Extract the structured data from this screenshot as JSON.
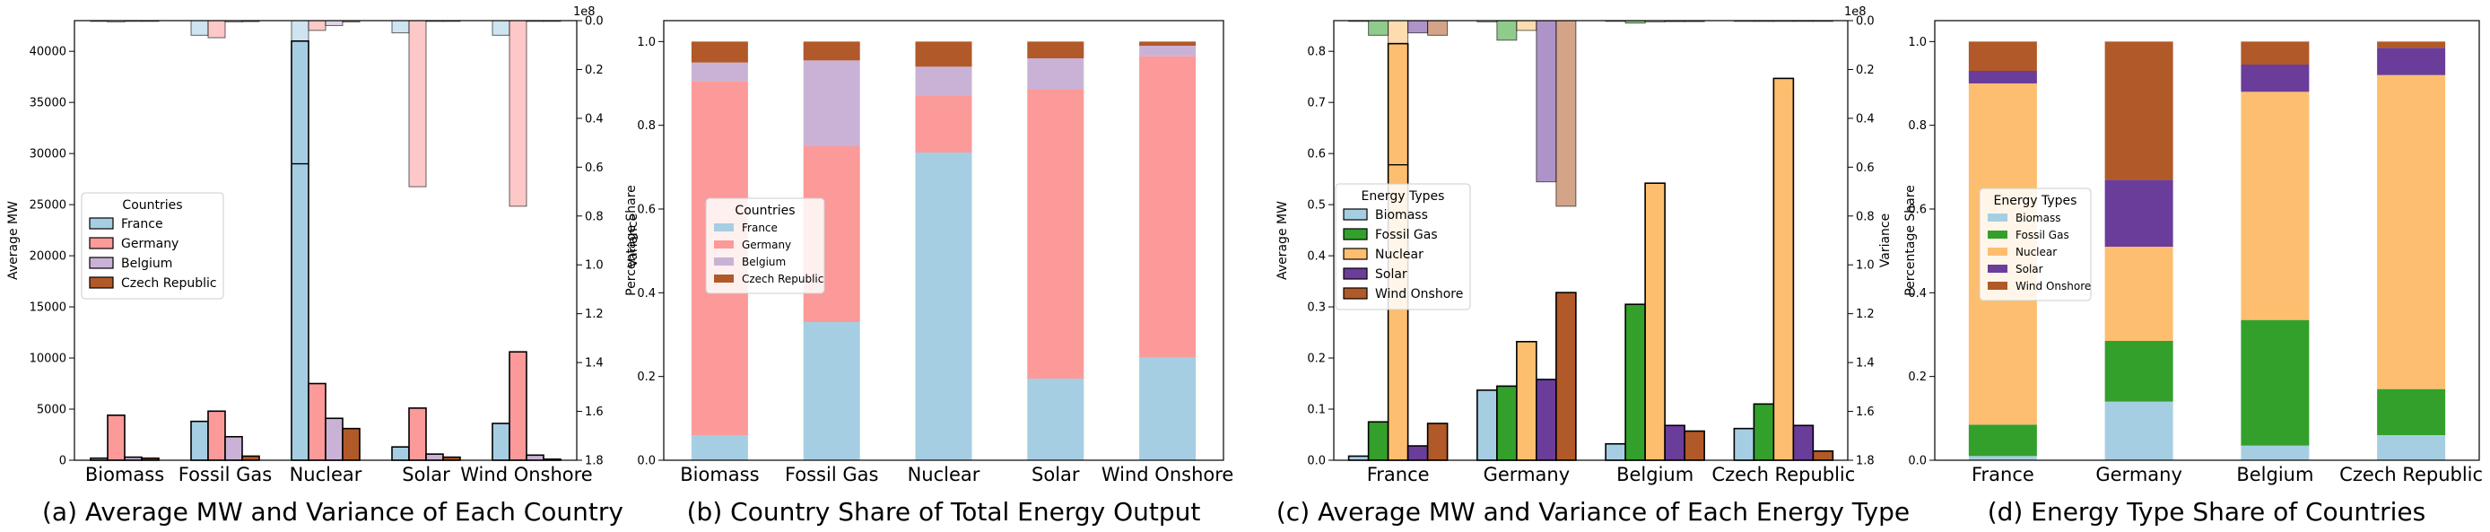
{
  "colors": {
    "France": "#a6cee3",
    "Germany": "#fb9a99",
    "Belgium": "#cab2d6",
    "Czech Republic": "#b15928",
    "Biomass": "#a6cee3",
    "Fossil Gas": "#33a02c",
    "Nuclear": "#fdbf6f",
    "Solar": "#6a3d9a",
    "Wind Onshore": "#b15928"
  },
  "chart_data": [
    {
      "id": "a",
      "type": "bar",
      "caption": "(a) Average MW and Variance of Each Country",
      "ylabel": "Average MW",
      "ylabel_right": "Variance",
      "right_offset_text": "1e8",
      "categories": [
        "Biomass",
        "Fossil Gas",
        "Nuclear",
        "Solar",
        "Wind Onshore"
      ],
      "ylim": [
        0,
        43000
      ],
      "yticks": [
        0,
        5000,
        10000,
        15000,
        20000,
        25000,
        30000,
        35000,
        40000
      ],
      "right_ylim": [
        0,
        1.8
      ],
      "right_inverted": true,
      "right_ticks": [
        "0.0",
        "0.2",
        "0.4",
        "0.6",
        "0.8",
        "1.0",
        "1.2",
        "1.4",
        "1.6",
        "1.8"
      ],
      "legend": {
        "title": "Countries",
        "placement": "center-left"
      },
      "series": [
        {
          "name": "France",
          "values": [
            200,
            3800,
            41000,
            1300,
            3600
          ],
          "variance": [
            0.003,
            0.06,
            1.8,
            0.05,
            0.06
          ]
        },
        {
          "name": "Germany",
          "values": [
            4400,
            4800,
            7500,
            5100,
            10600
          ],
          "variance": [
            0.005,
            0.07,
            0.04,
            0.68,
            0.76
          ]
        },
        {
          "name": "Belgium",
          "values": [
            300,
            2300,
            4100,
            600,
            500
          ],
          "variance": [
            0.001,
            0.005,
            0.02,
            0.003,
            0.002
          ]
        },
        {
          "name": "Czech Republic",
          "values": [
            200,
            400,
            3100,
            300,
            100
          ],
          "variance": [
            0.001,
            0.004,
            0.005,
            0.002,
            0.001
          ]
        }
      ],
      "nuclear_france_marker": 29000
    },
    {
      "id": "b",
      "type": "bar",
      "stacked": true,
      "caption": "(b) Country Share of Total Energy Output",
      "ylabel": "Percentage Share",
      "categories": [
        "Biomass",
        "Fossil Gas",
        "Nuclear",
        "Solar",
        "Wind Onshore"
      ],
      "ylim": [
        0,
        1.05
      ],
      "yticks": [
        "0.0",
        "0.2",
        "0.4",
        "0.6",
        "0.8",
        "1.0"
      ],
      "legend": {
        "title": "Countries",
        "placement": "center-left"
      },
      "series": [
        {
          "name": "France",
          "values": [
            0.06,
            0.33,
            0.735,
            0.195,
            0.245
          ]
        },
        {
          "name": "Germany",
          "values": [
            0.845,
            0.42,
            0.135,
            0.69,
            0.72
          ]
        },
        {
          "name": "Belgium",
          "values": [
            0.045,
            0.205,
            0.07,
            0.075,
            0.025
          ]
        },
        {
          "name": "Czech Republic",
          "values": [
            0.05,
            0.045,
            0.06,
            0.04,
            0.01
          ]
        }
      ]
    },
    {
      "id": "c",
      "type": "bar",
      "caption": "(c) Average MW and Variance of Each Energy Type",
      "ylabel": "Average MW",
      "ylabel_right": "Variance",
      "right_offset_text": "1e8",
      "categories": [
        "France",
        "Germany",
        "Belgium",
        "Czech Republic"
      ],
      "ylim": [
        0,
        0.86
      ],
      "yticks": [
        "0.0",
        "0.1",
        "0.2",
        "0.3",
        "0.4",
        "0.5",
        "0.6",
        "0.7",
        "0.8"
      ],
      "right_ylim": [
        0,
        1.8
      ],
      "right_inverted": true,
      "right_ticks": [
        "0.0",
        "0.2",
        "0.4",
        "0.6",
        "0.8",
        "1.0",
        "1.2",
        "1.4",
        "1.6",
        "1.8"
      ],
      "legend": {
        "title": "Energy Types",
        "placement": "center-left"
      },
      "series": [
        {
          "name": "Biomass",
          "values": [
            0.008,
            0.137,
            0.032,
            0.062
          ],
          "variance": [
            0.003,
            0.005,
            0.002,
            0.001
          ]
        },
        {
          "name": "Fossil Gas",
          "values": [
            0.075,
            0.145,
            0.305,
            0.11
          ],
          "variance": [
            0.06,
            0.08,
            0.01,
            0.003
          ]
        },
        {
          "name": "Nuclear",
          "values": [
            0.815,
            0.232,
            0.542,
            0.747
          ],
          "variance": [
            1.8,
            0.04,
            0.005,
            0.002
          ]
        },
        {
          "name": "Solar",
          "values": [
            0.028,
            0.158,
            0.068,
            0.068
          ],
          "variance": [
            0.05,
            0.66,
            0.004,
            0.002
          ]
        },
        {
          "name": "Wind Onshore",
          "values": [
            0.072,
            0.328,
            0.057,
            0.018
          ],
          "variance": [
            0.06,
            0.76,
            0.004,
            0.001
          ]
        }
      ],
      "nuclear_france_marker": 0.578
    },
    {
      "id": "d",
      "type": "bar",
      "stacked": true,
      "caption": "(d) Energy Type Share of Countries",
      "ylabel": "Percentage Share",
      "categories": [
        "France",
        "Germany",
        "Belgium",
        "Czech Republic"
      ],
      "ylim": [
        0,
        1.05
      ],
      "yticks": [
        "0.0",
        "0.2",
        "0.4",
        "0.6",
        "0.8",
        "1.0"
      ],
      "legend": {
        "title": "Energy Types",
        "placement": "center-left"
      },
      "series": [
        {
          "name": "Biomass",
          "values": [
            0.01,
            0.14,
            0.035,
            0.06
          ]
        },
        {
          "name": "Fossil Gas",
          "values": [
            0.075,
            0.145,
            0.3,
            0.11
          ]
        },
        {
          "name": "Nuclear",
          "values": [
            0.815,
            0.225,
            0.545,
            0.75
          ]
        },
        {
          "name": "Solar",
          "values": [
            0.03,
            0.16,
            0.065,
            0.065
          ]
        },
        {
          "name": "Wind Onshore",
          "values": [
            0.07,
            0.33,
            0.055,
            0.015
          ]
        }
      ]
    }
  ]
}
